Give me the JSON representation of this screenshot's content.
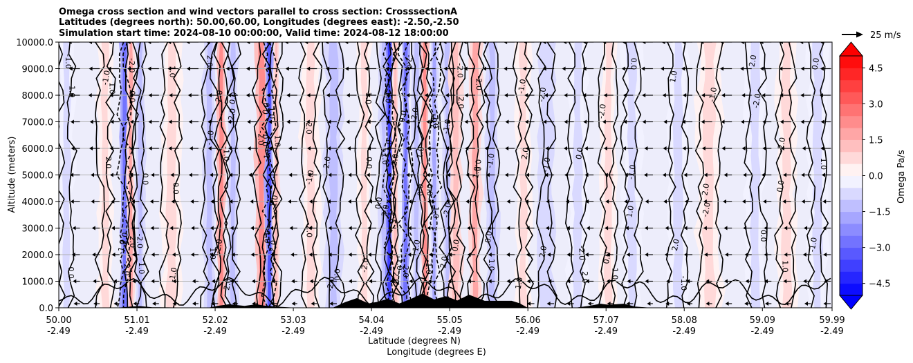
{
  "chart_data": {
    "type": "contourf-cross-section",
    "title_lines": [
      "Omega cross section and wind vectors parallel to cross section: CrosssectionA",
      "Latitudes (degrees north): 50.00,60.00, Longitudes (degrees east): -2.50,-2.50",
      "Simulation start time: 2024-08-10 00:00:00, Valid time: 2024-08-12 18:00:00"
    ],
    "xlabel_lat": "Latitude (degrees N)",
    "xlabel_lon": "Longitude (degrees E)",
    "ylabel": "Altitude (meters)",
    "xlim": [
      50.0,
      59.99
    ],
    "ylim": [
      0,
      10000
    ],
    "x_ticks": [
      {
        "lat": "50.00",
        "lon": "-2.49",
        "value": 50.0
      },
      {
        "lat": "51.01",
        "lon": "-2.49",
        "value": 51.01
      },
      {
        "lat": "52.02",
        "lon": "-2.49",
        "value": 52.02
      },
      {
        "lat": "53.03",
        "lon": "-2.49",
        "value": 53.03
      },
      {
        "lat": "54.04",
        "lon": "-2.49",
        "value": 54.04
      },
      {
        "lat": "55.05",
        "lon": "-2.49",
        "value": 55.05
      },
      {
        "lat": "56.06",
        "lon": "-2.49",
        "value": 56.06
      },
      {
        "lat": "57.07",
        "lon": "-2.49",
        "value": 57.07
      },
      {
        "lat": "58.08",
        "lon": "-2.49",
        "value": 58.08
      },
      {
        "lat": "59.09",
        "lon": "-2.49",
        "value": 59.09
      },
      {
        "lat": "59.99",
        "lon": "-2.49",
        "value": 59.99
      }
    ],
    "y_ticks": [
      {
        "label": "0.0",
        "value": 0
      },
      {
        "label": "1000.0",
        "value": 1000
      },
      {
        "label": "2000.0",
        "value": 2000
      },
      {
        "label": "3000.0",
        "value": 3000
      },
      {
        "label": "4000.0",
        "value": 4000
      },
      {
        "label": "5000.0",
        "value": 5000
      },
      {
        "label": "6000.0",
        "value": 6000
      },
      {
        "label": "7000.0",
        "value": 7000
      },
      {
        "label": "8000.0",
        "value": 8000
      },
      {
        "label": "9000.0",
        "value": 9000
      },
      {
        "label": "10000.0",
        "value": 10000
      }
    ],
    "grid": "horizontal",
    "colorbar": {
      "label": "Omega Pa/s",
      "range": [
        -5.0,
        5.0
      ],
      "step": 0.5,
      "ticks": [
        {
          "label": "4.5",
          "value": 4.5
        },
        {
          "label": "3.0",
          "value": 3.0
        },
        {
          "label": "1.5",
          "value": 1.5
        },
        {
          "label": "0.0",
          "value": 0.0
        },
        {
          "label": "−1.5",
          "value": -1.5
        },
        {
          "label": "−3.0",
          "value": -3.0
        },
        {
          "label": "−4.5",
          "value": -4.5
        }
      ],
      "extend": "both",
      "colormap": "bwr"
    },
    "quiver_key": {
      "label": "25 m/s",
      "value": 25
    },
    "contour_levels": [
      -2.0,
      -1.0,
      0.0,
      1.0,
      2.0
    ],
    "contour_labels": [
      "0.0",
      "1.0",
      "-1.0",
      "2.0",
      "-2.0"
    ],
    "vertical_bands": [
      {
        "lat": 50.1,
        "omega": -0.8,
        "width": 0.12
      },
      {
        "lat": 50.6,
        "omega": 0.8,
        "width": 0.12
      },
      {
        "lat": 50.85,
        "omega": -2.5,
        "width": 0.07
      },
      {
        "lat": 50.93,
        "omega": 1.5,
        "width": 0.06
      },
      {
        "lat": 51.05,
        "omega": -1.2,
        "width": 0.08
      },
      {
        "lat": 51.45,
        "omega": 0.8,
        "width": 0.15
      },
      {
        "lat": 51.95,
        "omega": -1.0,
        "width": 0.1
      },
      {
        "lat": 52.1,
        "omega": 2.0,
        "width": 0.07
      },
      {
        "lat": 52.25,
        "omega": -1.3,
        "width": 0.08
      },
      {
        "lat": 52.62,
        "omega": 2.3,
        "width": 0.1
      },
      {
        "lat": 52.72,
        "omega": -3.0,
        "width": 0.07
      },
      {
        "lat": 52.81,
        "omega": 1.2,
        "width": 0.05
      },
      {
        "lat": 53.25,
        "omega": 0.6,
        "width": 0.15
      },
      {
        "lat": 53.55,
        "omega": -1.0,
        "width": 0.15
      },
      {
        "lat": 53.95,
        "omega": 0.7,
        "width": 0.1
      },
      {
        "lat": 54.2,
        "omega": -1.2,
        "width": 0.08
      },
      {
        "lat": 54.27,
        "omega": -3.5,
        "width": 0.05
      },
      {
        "lat": 54.35,
        "omega": 1.0,
        "width": 0.05
      },
      {
        "lat": 54.48,
        "omega": -2.5,
        "width": 0.06
      },
      {
        "lat": 54.62,
        "omega": -1.0,
        "width": 0.07
      },
      {
        "lat": 54.73,
        "omega": 2.2,
        "width": 0.06
      },
      {
        "lat": 54.85,
        "omega": -1.6,
        "width": 0.06
      },
      {
        "lat": 55.02,
        "omega": -1.3,
        "width": 0.08
      },
      {
        "lat": 55.13,
        "omega": 1.2,
        "width": 0.1
      },
      {
        "lat": 55.38,
        "omega": 1.5,
        "width": 0.1
      },
      {
        "lat": 55.6,
        "omega": -1.0,
        "width": 0.1
      },
      {
        "lat": 56.0,
        "omega": 0.6,
        "width": 0.12
      },
      {
        "lat": 56.3,
        "omega": -0.9,
        "width": 0.12
      },
      {
        "lat": 56.7,
        "omega": -0.7,
        "width": 0.15
      },
      {
        "lat": 57.1,
        "omega": 0.8,
        "width": 0.12
      },
      {
        "lat": 57.4,
        "omega": -0.6,
        "width": 0.15
      },
      {
        "lat": 58.0,
        "omega": -0.7,
        "width": 0.15
      },
      {
        "lat": 58.4,
        "omega": 0.5,
        "width": 0.2
      },
      {
        "lat": 59.0,
        "omega": -0.7,
        "width": 0.15
      },
      {
        "lat": 59.4,
        "omega": 0.8,
        "width": 0.15
      },
      {
        "lat": 59.8,
        "omega": -0.5,
        "width": 0.15
      }
    ],
    "terrain": [
      {
        "lat": 50.0,
        "h": 0
      },
      {
        "lat": 50.8,
        "h": 0
      },
      {
        "lat": 50.95,
        "h": 40
      },
      {
        "lat": 51.05,
        "h": 50
      },
      {
        "lat": 51.2,
        "h": 10
      },
      {
        "lat": 51.5,
        "h": 0
      },
      {
        "lat": 51.95,
        "h": 0
      },
      {
        "lat": 52.05,
        "h": 60
      },
      {
        "lat": 52.2,
        "h": 120
      },
      {
        "lat": 52.4,
        "h": 60
      },
      {
        "lat": 52.55,
        "h": 120
      },
      {
        "lat": 52.65,
        "h": 70
      },
      {
        "lat": 52.8,
        "h": 30
      },
      {
        "lat": 53.0,
        "h": 0
      },
      {
        "lat": 53.55,
        "h": 0
      },
      {
        "lat": 53.7,
        "h": 200
      },
      {
        "lat": 53.85,
        "h": 350
      },
      {
        "lat": 54.0,
        "h": 150
      },
      {
        "lat": 54.1,
        "h": 200
      },
      {
        "lat": 54.25,
        "h": 320
      },
      {
        "lat": 54.4,
        "h": 150
      },
      {
        "lat": 54.55,
        "h": 320
      },
      {
        "lat": 54.7,
        "h": 520
      },
      {
        "lat": 54.85,
        "h": 300
      },
      {
        "lat": 55.0,
        "h": 420
      },
      {
        "lat": 55.15,
        "h": 260
      },
      {
        "lat": 55.3,
        "h": 480
      },
      {
        "lat": 55.5,
        "h": 250
      },
      {
        "lat": 55.7,
        "h": 250
      },
      {
        "lat": 55.85,
        "h": 250
      },
      {
        "lat": 55.95,
        "h": 160
      },
      {
        "lat": 56.05,
        "h": 0
      },
      {
        "lat": 56.7,
        "h": 0
      },
      {
        "lat": 56.85,
        "h": 60
      },
      {
        "lat": 57.0,
        "h": 140
      },
      {
        "lat": 57.1,
        "h": 100
      },
      {
        "lat": 57.3,
        "h": 140
      },
      {
        "lat": 57.45,
        "h": 30
      },
      {
        "lat": 57.6,
        "h": 0
      },
      {
        "lat": 59.99,
        "h": 0
      }
    ]
  }
}
